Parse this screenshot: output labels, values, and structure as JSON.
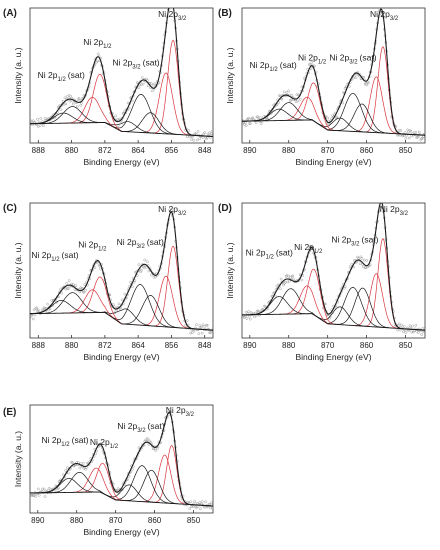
{
  "colors": {
    "raw": "#9e9e9e",
    "envelope": "#1a1a1a",
    "ni2_component": "#d9363e",
    "ni3_component": "#1a1a1a",
    "background": "#1a1a1a"
  },
  "chart_data": [
    {
      "panel": "(A)",
      "type": "line",
      "xlabel": "Binding Energy (eV)",
      "ylabel": "Intensity (a. u.)",
      "xlim": [
        890,
        846
      ],
      "x_reversed": true,
      "xticks": [
        "888",
        "880",
        "872",
        "864",
        "856",
        "848"
      ],
      "xtick_values": [
        888,
        880,
        872,
        864,
        856,
        848
      ],
      "ylim": [
        0,
        1
      ],
      "background": [
        [
          890,
          0.12
        ],
        [
          872,
          0.13
        ],
        [
          868,
          0.06
        ],
        [
          846,
          0.02
        ]
      ],
      "peaks": [
        {
          "center": 855.6,
          "height": 0.74,
          "width": 1.3,
          "color": "red"
        },
        {
          "center": 857.3,
          "height": 0.48,
          "width": 1.6,
          "color": "red"
        },
        {
          "center": 861.0,
          "height": 0.16,
          "width": 2.0,
          "color": "black"
        },
        {
          "center": 863.3,
          "height": 0.3,
          "width": 2.2,
          "color": "black"
        },
        {
          "center": 866.5,
          "height": 0.08,
          "width": 2.0,
          "color": "black"
        },
        {
          "center": 873.2,
          "height": 0.38,
          "width": 1.6,
          "color": "red"
        },
        {
          "center": 875.0,
          "height": 0.2,
          "width": 1.8,
          "color": "red"
        },
        {
          "center": 879.8,
          "height": 0.13,
          "width": 2.2,
          "color": "black"
        },
        {
          "center": 882.0,
          "height": 0.08,
          "width": 2.2,
          "color": "black"
        }
      ],
      "labels": [
        {
          "name": "Ni 2p",
          "sub": "3/2",
          "sat": false,
          "x": 855.8,
          "y": 0.96
        },
        {
          "name": "Ni 2p",
          "sub": "1/2",
          "sat": false,
          "x": 873.8,
          "y": 0.74
        },
        {
          "name": "Ni 2p",
          "sub": "3/2",
          "sat": true,
          "x": 864.5,
          "y": 0.58
        },
        {
          "name": "Ni 2p",
          "sub": "1/2",
          "sat": true,
          "x": 882.5,
          "y": 0.48
        }
      ]
    },
    {
      "panel": "(B)",
      "type": "line",
      "xlabel": "Binding Energy (eV)",
      "ylabel": "Intensity (a. u.)",
      "xlim": [
        892,
        845
      ],
      "x_reversed": true,
      "xticks": [
        "890",
        "880",
        "870",
        "860",
        "850"
      ],
      "xtick_values": [
        890,
        880,
        870,
        860,
        850
      ],
      "ylim": [
        0,
        1
      ],
      "background": [
        [
          892,
          0.14
        ],
        [
          874,
          0.15
        ],
        [
          870,
          0.07
        ],
        [
          845,
          0.03
        ]
      ],
      "peaks": [
        {
          "center": 855.8,
          "height": 0.68,
          "width": 1.3,
          "color": "red"
        },
        {
          "center": 857.5,
          "height": 0.44,
          "width": 1.6,
          "color": "red"
        },
        {
          "center": 861.2,
          "height": 0.22,
          "width": 2.0,
          "color": "black"
        },
        {
          "center": 863.5,
          "height": 0.3,
          "width": 2.2,
          "color": "black"
        },
        {
          "center": 866.8,
          "height": 0.1,
          "width": 2.0,
          "color": "black"
        },
        {
          "center": 873.5,
          "height": 0.3,
          "width": 1.6,
          "color": "red"
        },
        {
          "center": 875.3,
          "height": 0.18,
          "width": 1.8,
          "color": "red"
        },
        {
          "center": 880.0,
          "height": 0.14,
          "width": 2.2,
          "color": "black"
        },
        {
          "center": 882.5,
          "height": 0.09,
          "width": 2.2,
          "color": "black"
        }
      ],
      "labels": [
        {
          "name": "Ni 2p",
          "sub": "3/2",
          "sat": false,
          "x": 855.5,
          "y": 0.96
        },
        {
          "name": "Ni 2p",
          "sub": "1/2",
          "sat": false,
          "x": 874.0,
          "y": 0.62
        },
        {
          "name": "Ni 2p",
          "sub": "3/2",
          "sat": true,
          "x": 863.5,
          "y": 0.62
        },
        {
          "name": "Ni 2p",
          "sub": "1/2",
          "sat": true,
          "x": 884.0,
          "y": 0.56
        }
      ]
    },
    {
      "panel": "(C)",
      "type": "line",
      "xlabel": "Binding Energy (eV)",
      "ylabel": "Intensity (a. u.)",
      "xlim": [
        890,
        846
      ],
      "x_reversed": true,
      "xticks": [
        "888",
        "880",
        "872",
        "864",
        "856",
        "848"
      ],
      "xtick_values": [
        888,
        880,
        872,
        864,
        856,
        848
      ],
      "ylim": [
        0,
        1
      ],
      "background": [
        [
          890,
          0.16
        ],
        [
          872,
          0.17
        ],
        [
          868,
          0.08
        ],
        [
          846,
          0.03
        ]
      ],
      "peaks": [
        {
          "center": 855.6,
          "height": 0.64,
          "width": 1.3,
          "color": "red"
        },
        {
          "center": 857.3,
          "height": 0.4,
          "width": 1.6,
          "color": "red"
        },
        {
          "center": 861.0,
          "height": 0.24,
          "width": 2.0,
          "color": "black"
        },
        {
          "center": 863.5,
          "height": 0.32,
          "width": 2.2,
          "color": "black"
        },
        {
          "center": 867.0,
          "height": 0.12,
          "width": 2.0,
          "color": "black"
        },
        {
          "center": 873.2,
          "height": 0.28,
          "width": 1.6,
          "color": "red"
        },
        {
          "center": 875.0,
          "height": 0.18,
          "width": 1.8,
          "color": "red"
        },
        {
          "center": 879.8,
          "height": 0.16,
          "width": 2.2,
          "color": "black"
        },
        {
          "center": 882.5,
          "height": 0.1,
          "width": 2.2,
          "color": "black"
        }
      ],
      "labels": [
        {
          "name": "Ni 2p",
          "sub": "3/2",
          "sat": false,
          "x": 855.8,
          "y": 0.96
        },
        {
          "name": "Ni 2p",
          "sub": "1/2",
          "sat": false,
          "x": 875.0,
          "y": 0.68
        },
        {
          "name": "Ni 2p",
          "sub": "3/2",
          "sat": true,
          "x": 863.5,
          "y": 0.7
        },
        {
          "name": "Ni 2p",
          "sub": "1/2",
          "sat": true,
          "x": 884.0,
          "y": 0.6
        }
      ]
    },
    {
      "panel": "(D)",
      "type": "line",
      "xlabel": "Binding Energy (eV)",
      "ylabel": "Intensity (a. u.)",
      "xlim": [
        892,
        845
      ],
      "x_reversed": true,
      "xticks": [
        "890",
        "880",
        "870",
        "860",
        "850"
      ],
      "xtick_values": [
        890,
        880,
        870,
        860,
        850
      ],
      "ylim": [
        0,
        1
      ],
      "background": [
        [
          892,
          0.15
        ],
        [
          874,
          0.16
        ],
        [
          870,
          0.08
        ],
        [
          845,
          0.03
        ]
      ],
      "peaks": [
        {
          "center": 855.8,
          "height": 0.7,
          "width": 1.3,
          "color": "red"
        },
        {
          "center": 857.5,
          "height": 0.42,
          "width": 1.6,
          "color": "red"
        },
        {
          "center": 861.0,
          "height": 0.3,
          "width": 2.0,
          "color": "black"
        },
        {
          "center": 863.5,
          "height": 0.3,
          "width": 2.2,
          "color": "black"
        },
        {
          "center": 866.8,
          "height": 0.14,
          "width": 2.0,
          "color": "black"
        },
        {
          "center": 873.5,
          "height": 0.36,
          "width": 1.6,
          "color": "red"
        },
        {
          "center": 875.3,
          "height": 0.22,
          "width": 1.8,
          "color": "red"
        },
        {
          "center": 879.5,
          "height": 0.2,
          "width": 2.2,
          "color": "black"
        },
        {
          "center": 882.5,
          "height": 0.14,
          "width": 2.2,
          "color": "black"
        }
      ],
      "labels": [
        {
          "name": "Ni 2p",
          "sub": "3/2",
          "sat": false,
          "x": 853.0,
          "y": 0.96
        },
        {
          "name": "Ni 2p",
          "sub": "1/2",
          "sat": false,
          "x": 875.0,
          "y": 0.66
        },
        {
          "name": "Ni 2p",
          "sub": "3/2",
          "sat": true,
          "x": 863.0,
          "y": 0.72
        },
        {
          "name": "Ni 2p",
          "sub": "1/2",
          "sat": true,
          "x": 885.0,
          "y": 0.62
        }
      ]
    },
    {
      "panel": "(E)",
      "type": "line",
      "xlabel": "Binding Energy (eV)",
      "ylabel": "Intensity (a. u.)",
      "xlim": [
        892,
        845
      ],
      "x_reversed": true,
      "xticks": [
        "890",
        "880",
        "870",
        "860",
        "850"
      ],
      "xtick_values": [
        890,
        880,
        870,
        860,
        850
      ],
      "ylim": [
        0,
        1
      ],
      "background": [
        [
          892,
          0.16
        ],
        [
          874,
          0.17
        ],
        [
          870,
          0.09
        ],
        [
          845,
          0.03
        ]
      ],
      "peaks": [
        {
          "center": 855.6,
          "height": 0.58,
          "width": 1.3,
          "color": "red"
        },
        {
          "center": 857.4,
          "height": 0.48,
          "width": 1.6,
          "color": "red"
        },
        {
          "center": 860.8,
          "height": 0.32,
          "width": 2.0,
          "color": "black"
        },
        {
          "center": 863.2,
          "height": 0.36,
          "width": 2.2,
          "color": "black"
        },
        {
          "center": 866.5,
          "height": 0.16,
          "width": 2.0,
          "color": "black"
        },
        {
          "center": 873.2,
          "height": 0.3,
          "width": 1.6,
          "color": "red"
        },
        {
          "center": 875.0,
          "height": 0.24,
          "width": 1.8,
          "color": "red"
        },
        {
          "center": 879.3,
          "height": 0.2,
          "width": 2.2,
          "color": "black"
        },
        {
          "center": 882.0,
          "height": 0.14,
          "width": 2.2,
          "color": "black"
        }
      ],
      "labels": [
        {
          "name": "Ni 2p",
          "sub": "3/2",
          "sat": false,
          "x": 853.5,
          "y": 0.96
        },
        {
          "name": "Ni 2p",
          "sub": "1/2",
          "sat": false,
          "x": 873.0,
          "y": 0.64
        },
        {
          "name": "Ni 2p",
          "sub": "3/2",
          "sat": true,
          "x": 863.5,
          "y": 0.8
        },
        {
          "name": "Ni 2p",
          "sub": "1/2",
          "sat": true,
          "x": 883.0,
          "y": 0.66
        }
      ]
    }
  ]
}
